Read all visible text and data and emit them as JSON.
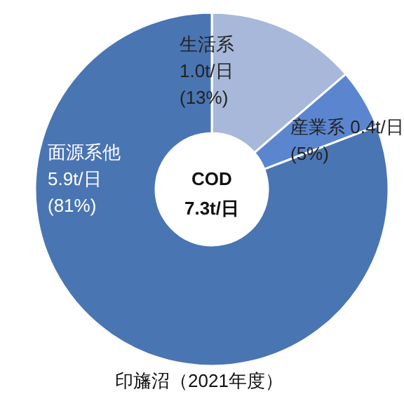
{
  "chart_data": {
    "type": "donut",
    "title": "印旛沼（2021年度）",
    "categories": [
      "生活系",
      "産業系",
      "面源系他"
    ],
    "values": [
      1.0,
      0.4,
      5.9
    ],
    "colors": [
      "#a8b8da",
      "#5b86cf",
      "#4a75b3"
    ],
    "value_labels": [
      "1.0t/日",
      "0.4t/日",
      "5.9t/日"
    ],
    "annotations": [
      "COD\n7.3t/日",
      {
        "text": "(13%)",
        "x": "生活系"
      },
      {
        "text": "(5%)",
        "x": "産業系"
      },
      {
        "text": "(81%)",
        "x": "面源系他"
      }
    ]
  }
}
